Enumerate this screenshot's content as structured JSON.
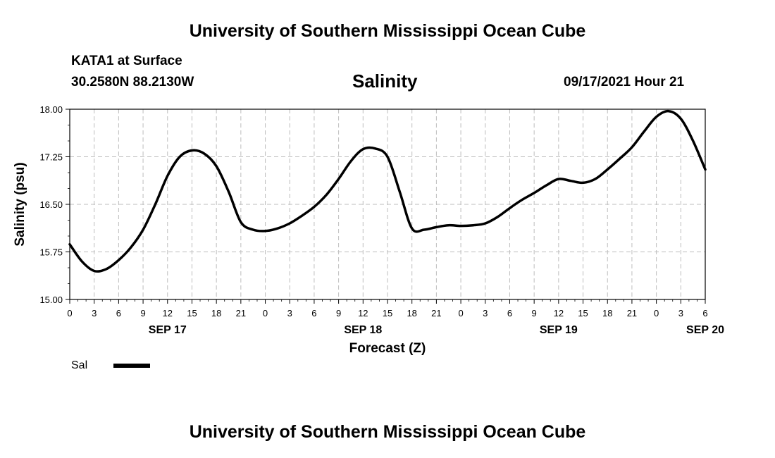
{
  "header": {
    "title": "University of Southern Mississippi Ocean Cube",
    "station": "KATA1 at Surface",
    "coords": "30.2580N  88.2130W",
    "datetime": "09/17/2021 Hour 21"
  },
  "footer": {
    "title": "University of Southern Mississippi Ocean Cube"
  },
  "legend": {
    "label": "Sal"
  },
  "chart_data": {
    "type": "line",
    "title": "Salinity",
    "xlabel": "Forecast (Z)",
    "ylabel": "Salinity (psu)",
    "xlim": [
      0,
      78
    ],
    "ylim": [
      15.0,
      18.0
    ],
    "grid": true,
    "x_tick_labels": [
      "0",
      "3",
      "6",
      "9",
      "12",
      "15",
      "18",
      "21",
      "0",
      "3",
      "6",
      "9",
      "12",
      "15",
      "18",
      "21",
      "0",
      "3",
      "6",
      "9",
      "12",
      "15",
      "18",
      "21",
      "0",
      "3",
      "6"
    ],
    "day_labels": [
      {
        "label": "SEP 17",
        "hour": 12
      },
      {
        "label": "SEP 18",
        "hour": 36
      },
      {
        "label": "SEP 19",
        "hour": 60
      },
      {
        "label": "SEP 20",
        "hour": 78
      }
    ],
    "y_ticks": [
      "15.00",
      "15.75",
      "16.50",
      "17.25",
      "18.00"
    ],
    "y_tick_values": [
      15.0,
      15.75,
      16.5,
      17.25,
      18.0
    ],
    "series": [
      {
        "name": "Sal",
        "color": "#000000",
        "x": [
          0,
          1.5,
          3,
          4.5,
          6,
          7.5,
          9,
          10.5,
          12,
          13.5,
          15,
          16.5,
          18,
          19.5,
          21,
          22.5,
          24,
          25.5,
          27,
          28.5,
          30,
          31.5,
          33,
          34.5,
          36,
          37.5,
          39,
          40.5,
          42,
          43.5,
          45,
          46.5,
          48,
          49.5,
          51,
          52.5,
          54,
          55.5,
          57,
          58.5,
          60,
          61.5,
          63,
          64.5,
          66,
          67.5,
          69,
          70.5,
          72,
          73.5,
          75,
          76.5,
          78
        ],
        "values": [
          15.87,
          15.6,
          15.45,
          15.48,
          15.62,
          15.82,
          16.1,
          16.5,
          16.95,
          17.25,
          17.35,
          17.3,
          17.1,
          16.7,
          16.22,
          16.1,
          16.08,
          16.12,
          16.2,
          16.32,
          16.46,
          16.65,
          16.9,
          17.18,
          17.37,
          17.38,
          17.25,
          16.7,
          16.12,
          16.1,
          16.14,
          16.17,
          16.16,
          16.17,
          16.2,
          16.3,
          16.44,
          16.57,
          16.68,
          16.8,
          16.9,
          16.87,
          16.84,
          16.9,
          17.05,
          17.22,
          17.4,
          17.65,
          17.88,
          17.97,
          17.85,
          17.5,
          17.05
        ]
      }
    ]
  }
}
